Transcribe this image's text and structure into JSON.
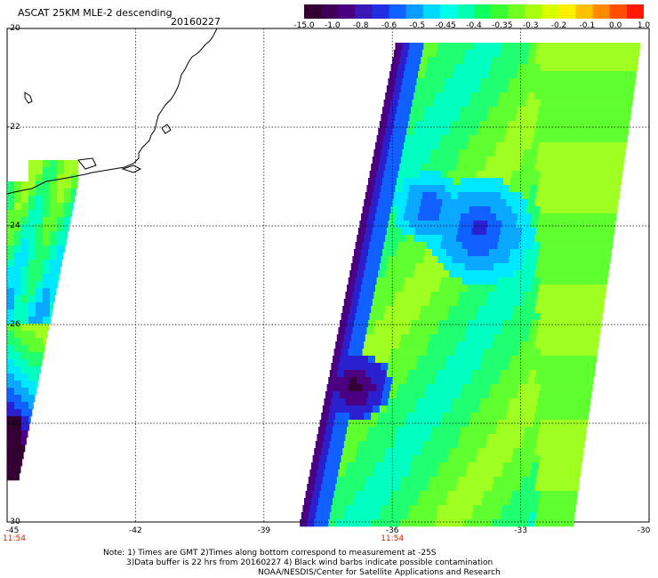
{
  "header": {
    "title": "ASCAT 25KM MLE-2 descending",
    "date": "20160227"
  },
  "colorbar": {
    "ticks": [
      "-15.0",
      "-1.0",
      "-0.8",
      "-0.6",
      "-0.5",
      "-0.45",
      "-0.4",
      "-0.35",
      "-0.3",
      "-0.2",
      "-0.1",
      "0.0",
      "1.0"
    ],
    "colors": [
      "#330033",
      "#400055",
      "#4b0082",
      "#3a16b5",
      "#1e30e0",
      "#1060ff",
      "#0a9cff",
      "#00d7ff",
      "#00ffe8",
      "#00ffb0",
      "#10ff60",
      "#38ff30",
      "#70ff20",
      "#a8ff10",
      "#d8ff00",
      "#ffee00",
      "#ffc000",
      "#ff8a00",
      "#ff5000",
      "#ff1800"
    ]
  },
  "axes": {
    "lat_labels": [
      "-20",
      "-22",
      "-24",
      "-26",
      "-28",
      "-30"
    ],
    "lon_labels": [
      "-45",
      "-42",
      "-39",
      "-36",
      "-33",
      "-30"
    ],
    "lat_range": [
      -30,
      -20
    ],
    "lon_range": [
      -45,
      -30
    ]
  },
  "times": [
    {
      "label": "11:54",
      "lon": -45
    },
    {
      "label": "11:54",
      "lon": -36
    }
  ],
  "notes": {
    "line1": "Note: 1) Times are GMT 2)Times along bottom correspond to measurement at -25S",
    "line2": "3)Data buffer is 22 hrs from 20160227 4) Black wind barbs indicate possible contamination",
    "line3": "NOAA/NESDIS/Center for Satellite Applications and Research"
  }
}
